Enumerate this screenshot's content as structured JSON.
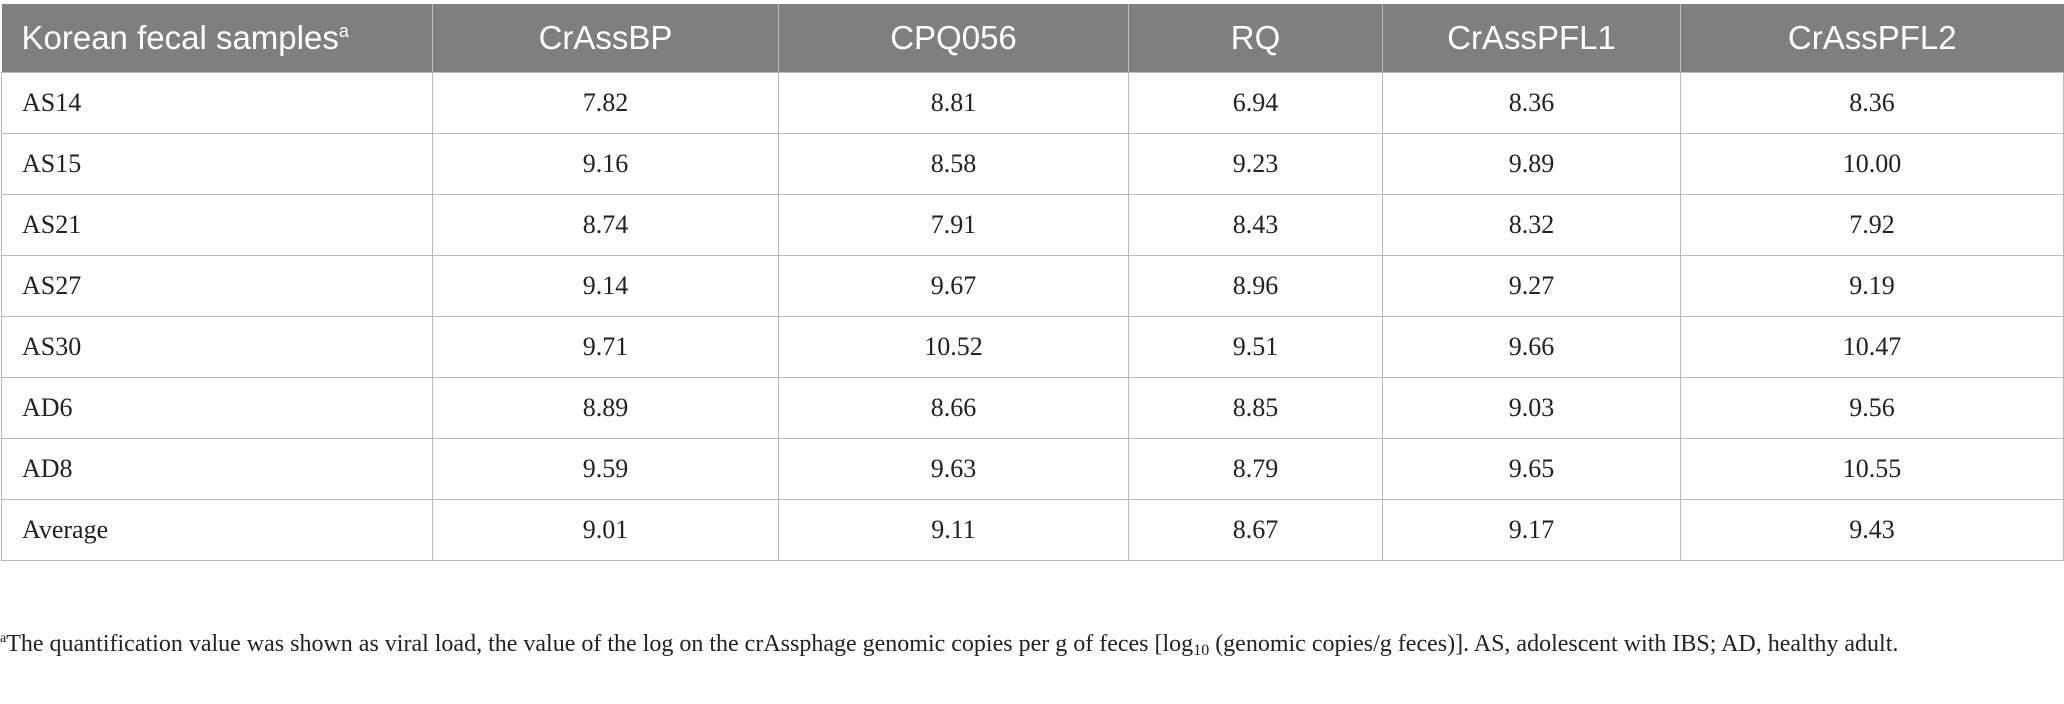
{
  "table": {
    "header": {
      "first_col": "Korean fecal samples",
      "first_col_marker": "a",
      "columns": [
        "CrAssBP",
        "CPQ056",
        "RQ",
        "CrAssPFL1",
        "CrAssPFL2"
      ]
    },
    "rows": [
      {
        "sample": "AS14",
        "values": [
          "7.82",
          "8.81",
          "6.94",
          "8.36",
          "8.36"
        ]
      },
      {
        "sample": "AS15",
        "values": [
          "9.16",
          "8.58",
          "9.23",
          "9.89",
          "10.00"
        ]
      },
      {
        "sample": "AS21",
        "values": [
          "8.74",
          "7.91",
          "8.43",
          "8.32",
          "7.92"
        ]
      },
      {
        "sample": "AS27",
        "values": [
          "9.14",
          "9.67",
          "8.96",
          "9.27",
          "9.19"
        ]
      },
      {
        "sample": "AS30",
        "values": [
          "9.71",
          "10.52",
          "9.51",
          "9.66",
          "10.47"
        ]
      },
      {
        "sample": "AD6",
        "values": [
          "8.89",
          "8.66",
          "8.85",
          "9.03",
          "9.56"
        ]
      },
      {
        "sample": "AD8",
        "values": [
          "9.59",
          "9.63",
          "8.79",
          "9.65",
          "10.55"
        ]
      },
      {
        "sample": "Average",
        "values": [
          "9.01",
          "9.11",
          "8.67",
          "9.17",
          "9.43"
        ]
      }
    ]
  },
  "footnote": {
    "marker": "a",
    "text_before": "The quantification value was shown as viral load, the value of the log on the crAssphage genomic copies per g of feces [log",
    "subscript": "10",
    "text_after": " (genomic copies/g feces)]. AS, adolescent with IBS; AD, healthy adult."
  },
  "colors": {
    "header_bg": "#7f7f7f",
    "header_text": "#ffffff",
    "grid": "#b9b9b9",
    "body_text": "#222222"
  }
}
